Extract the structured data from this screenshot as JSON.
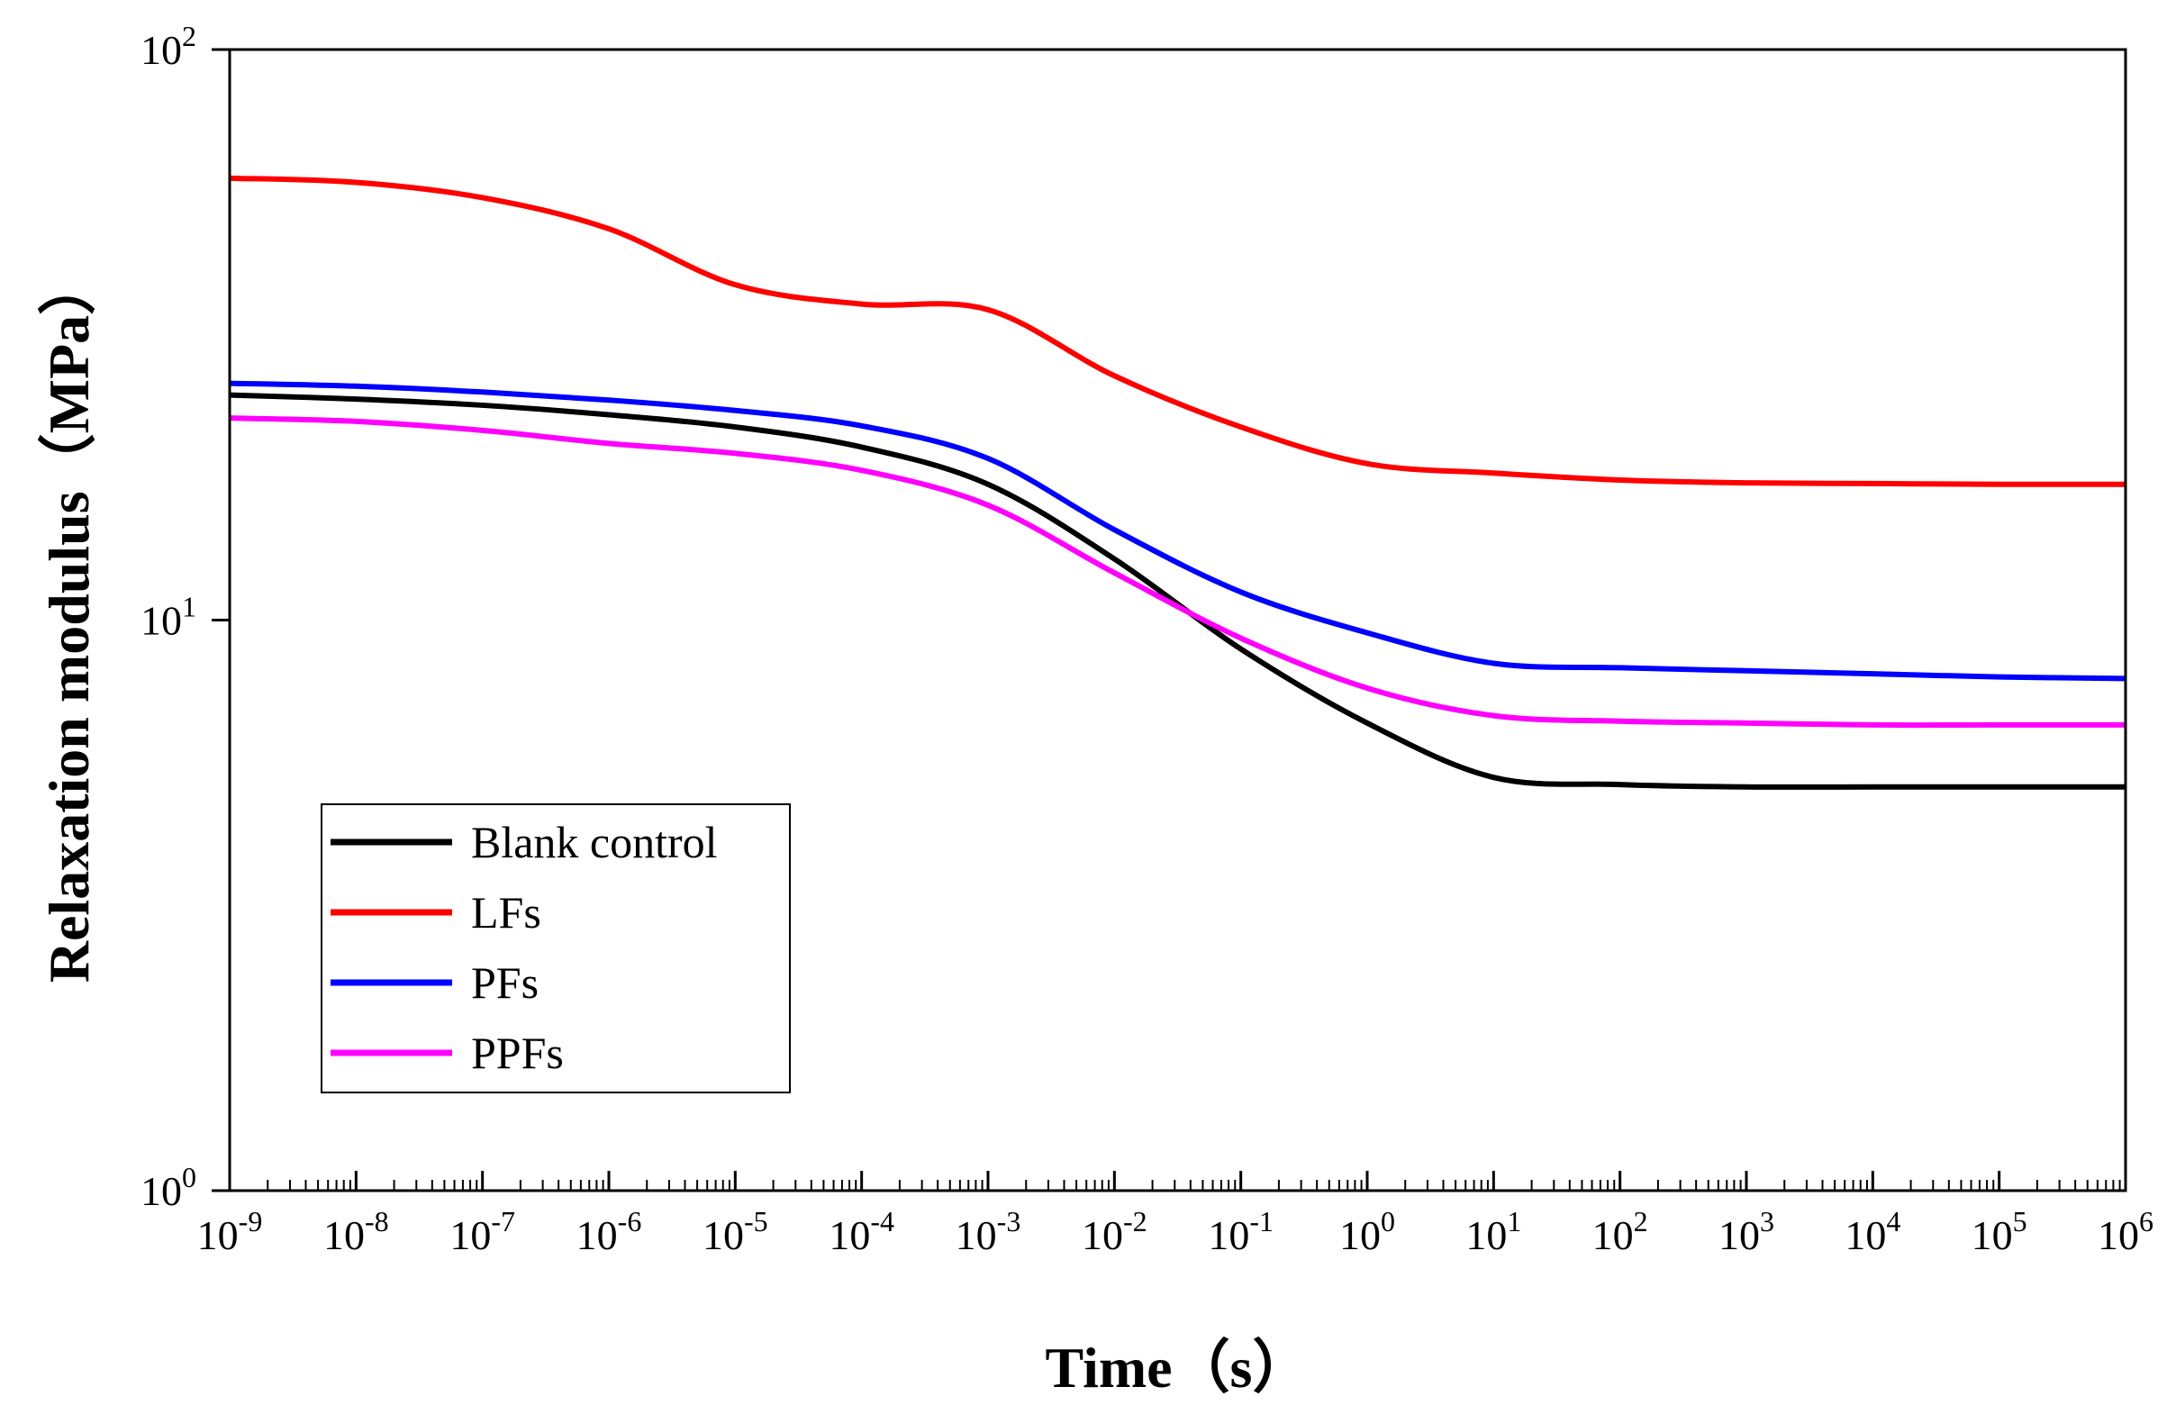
{
  "chart_data": {
    "type": "line",
    "xscale": "log",
    "yscale": "log",
    "xlabel": "Time（s）",
    "ylabel": "Relaxation modulus（MPa）",
    "xlim": [
      -9,
      6
    ],
    "ylim": [
      0,
      2
    ],
    "xticks": [
      {
        "exp": -9,
        "base": "10",
        "sup": "-9"
      },
      {
        "exp": -8,
        "base": "10",
        "sup": "-8"
      },
      {
        "exp": -7,
        "base": "10",
        "sup": "-7"
      },
      {
        "exp": -6,
        "base": "10",
        "sup": "-6"
      },
      {
        "exp": -5,
        "base": "10",
        "sup": "-5"
      },
      {
        "exp": -4,
        "base": "10",
        "sup": "-4"
      },
      {
        "exp": -3,
        "base": "10",
        "sup": "-3"
      },
      {
        "exp": -2,
        "base": "10",
        "sup": "-2"
      },
      {
        "exp": -1,
        "base": "10",
        "sup": "-1"
      },
      {
        "exp": 0,
        "base": "10",
        "sup": "0"
      },
      {
        "exp": 1,
        "base": "10",
        "sup": "1"
      },
      {
        "exp": 2,
        "base": "10",
        "sup": "2"
      },
      {
        "exp": 3,
        "base": "10",
        "sup": "3"
      },
      {
        "exp": 4,
        "base": "10",
        "sup": "4"
      },
      {
        "exp": 5,
        "base": "10",
        "sup": "5"
      },
      {
        "exp": 6,
        "base": "10",
        "sup": "6"
      }
    ],
    "yticks": [
      {
        "exp": 0,
        "base": "10",
        "sup": "0"
      },
      {
        "exp": 1,
        "base": "10",
        "sup": "1"
      },
      {
        "exp": 2,
        "base": "10",
        "sup": "2"
      }
    ],
    "x": [
      1e-09,
      1e-08,
      1e-07,
      1e-06,
      1e-05,
      0.0001,
      0.001,
      0.01,
      0.1,
      1,
      10,
      100,
      1000,
      10000,
      100000,
      1000000
    ],
    "series": [
      {
        "name": "Blank control",
        "color": "#000000",
        "values": [
          24.8,
          24.4,
          23.8,
          22.9,
          21.8,
          20.1,
          17.3,
          12.8,
          8.9,
          6.6,
          5.3,
          5.15,
          5.1,
          5.1,
          5.1,
          5.1
        ]
      },
      {
        "name": "LFs",
        "color": "#ff0000",
        "values": [
          59.5,
          58.5,
          55.0,
          48.5,
          38.7,
          35.8,
          35.0,
          26.8,
          21.8,
          18.8,
          18.1,
          17.6,
          17.4,
          17.35,
          17.3,
          17.3
        ]
      },
      {
        "name": "PFs",
        "color": "#0000ff",
        "values": [
          26.0,
          25.7,
          25.1,
          24.3,
          23.3,
          21.9,
          19.2,
          14.4,
          11.2,
          9.5,
          8.4,
          8.25,
          8.15,
          8.05,
          7.95,
          7.9
        ]
      },
      {
        "name": "PPFs",
        "color": "#ff00ff",
        "values": [
          22.6,
          22.3,
          21.5,
          20.4,
          19.6,
          18.3,
          15.9,
          12.1,
          9.3,
          7.6,
          6.8,
          6.65,
          6.6,
          6.55,
          6.55,
          6.55
        ]
      }
    ],
    "legend": {
      "position": "lower-left inside"
    }
  }
}
